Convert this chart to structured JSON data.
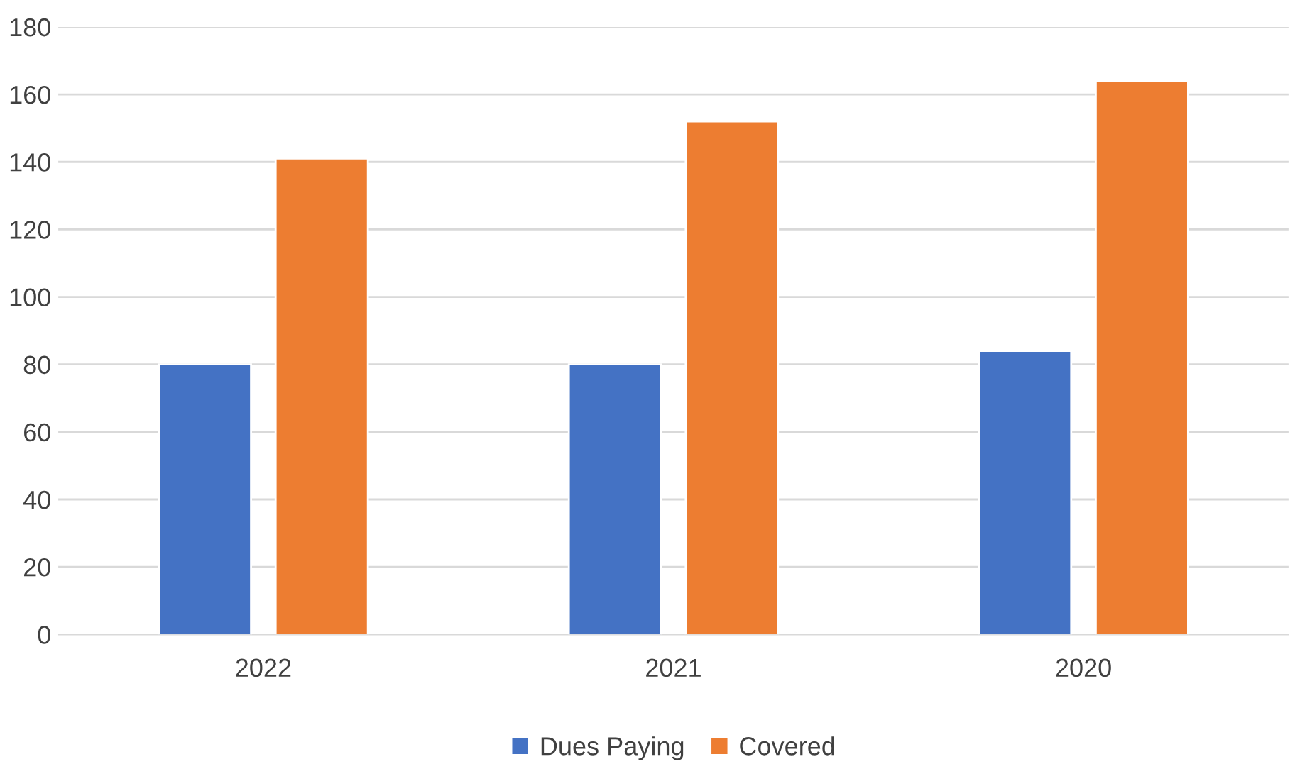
{
  "chart_data": {
    "type": "bar",
    "categories": [
      "2022",
      "2021",
      "2020"
    ],
    "series": [
      {
        "name": "Dues Paying",
        "color": "#4472c4",
        "values": [
          80,
          80,
          84
        ]
      },
      {
        "name": "Covered",
        "color": "#ed7d31",
        "values": [
          141,
          152,
          164
        ]
      }
    ],
    "ylim": [
      0,
      180
    ],
    "yticks": [
      0,
      20,
      40,
      60,
      80,
      100,
      120,
      140,
      160,
      180
    ],
    "grid": "y",
    "legend": "bottom"
  }
}
